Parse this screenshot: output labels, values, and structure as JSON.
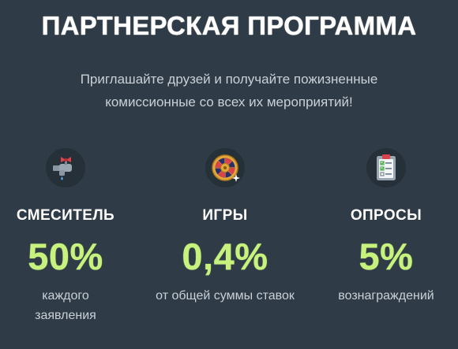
{
  "header": {
    "title": "ПАРТНЕРСКАЯ ПРОГРАММА",
    "subtitle": "Приглашайте друзей и получайте пожизненные комиссионные со всех их мероприятий!"
  },
  "cards": [
    {
      "icon": "faucet-icon",
      "name": "СМЕСИТЕЛЬ",
      "value": "50%",
      "description": "каждого заявления"
    },
    {
      "icon": "roulette-wheel-icon",
      "name": "ИГРЫ",
      "value": "0,4%",
      "description": "от общей суммы ставок"
    },
    {
      "icon": "survey-clipboard-icon",
      "name": "ОПРОСЫ",
      "value": "5%",
      "description": "вознаграждений"
    }
  ],
  "colors": {
    "background": "#2f3b46",
    "accent": "#c7f27e",
    "text_secondary": "#c9d0d7"
  }
}
